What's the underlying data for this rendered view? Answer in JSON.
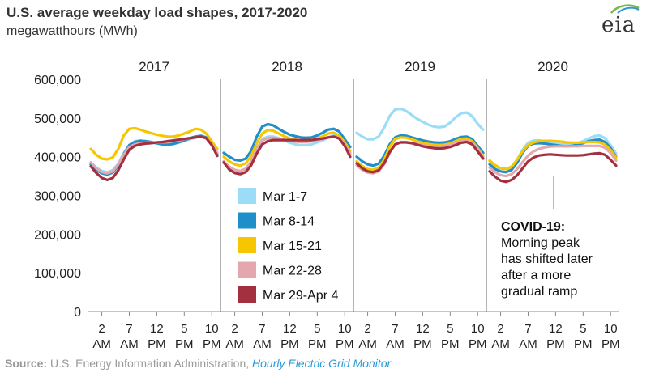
{
  "title": "U.S. average weekday load shapes, 2017-2020",
  "subtitle": "megawatthours (MWh)",
  "logo_text": "eia",
  "source": {
    "label": "Source:",
    "text": " U.S. Energy Information Administration, ",
    "link": "Hourly Electric Grid Monitor"
  },
  "annotation": {
    "heading": "COVID-19:",
    "lines": [
      "Morning peak",
      "has shifted later",
      "after a more",
      "gradual ramp"
    ]
  },
  "chart_data": {
    "type": "line",
    "ylim": [
      0,
      600000
    ],
    "yticks": [
      0,
      100000,
      200000,
      300000,
      400000,
      500000,
      600000
    ],
    "ytick_labels": [
      "0",
      "100,000",
      "200,000",
      "300,000",
      "400,000",
      "500,000",
      "600,000"
    ],
    "grid": false,
    "x_hours": [
      0,
      1,
      2,
      3,
      4,
      5,
      6,
      7,
      8,
      9,
      10,
      11,
      12,
      13,
      14,
      15,
      16,
      17,
      18,
      19,
      20,
      21,
      22,
      23
    ],
    "xtick_hours": [
      2,
      7,
      12,
      17,
      22
    ],
    "xtick_top": [
      "2",
      "7",
      "12",
      "5",
      "10"
    ],
    "xtick_bottom": [
      "AM",
      "AM",
      "PM",
      "PM",
      "PM"
    ],
    "legend": {
      "placement": "center-left",
      "entries": [
        "Mar 1-7",
        "Mar 8-14",
        "Mar 15-21",
        "Mar 22-28",
        "Mar 29-Apr 4"
      ]
    },
    "series_colors": [
      "#9bdcf6",
      "#1e8fc8",
      "#f6c600",
      "#e4a7ae",
      "#a3303e"
    ],
    "panels": [
      {
        "year": "2017",
        "series": [
          {
            "name": "Mar 1-7",
            "values": [
              385000,
              372000,
              363000,
              360000,
              365000,
              382000,
              410000,
              430000,
              440000,
              442000,
              440000,
              437000,
              434000,
              432000,
              432000,
              434000,
              437000,
              441000,
              445000,
              450000,
              453000,
              450000,
              435000,
              410000
            ]
          },
          {
            "name": "Mar 8-14",
            "values": [
              380000,
              366000,
              357000,
              354000,
              359000,
              377000,
              406000,
              430000,
              438000,
              441000,
              440000,
              438000,
              435000,
              432000,
              431000,
              433000,
              437000,
              442000,
              448000,
              452000,
              454000,
              450000,
              433000,
              408000
            ]
          },
          {
            "name": "Mar 15-21",
            "values": [
              420000,
              405000,
              395000,
              393000,
              398000,
              420000,
              455000,
              472000,
              474000,
              470000,
              465000,
              461000,
              457000,
              454000,
              452000,
              452000,
              455000,
              460000,
              465000,
              472000,
              470000,
              460000,
              440000,
              420000
            ]
          },
          {
            "name": "Mar 22-28",
            "values": [
              385000,
              370000,
              360000,
              357000,
              362000,
              380000,
              405000,
              425000,
              432000,
              435000,
              436000,
              436000,
              436000,
              437000,
              438000,
              440000,
              442000,
              445000,
              448000,
              450000,
              452000,
              448000,
              432000,
              410000
            ]
          },
          {
            "name": "Mar 29-Apr 4",
            "values": [
              375000,
              358000,
              345000,
              340000,
              345000,
              365000,
              393000,
              418000,
              428000,
              432000,
              434000,
              435000,
              437000,
              438000,
              440000,
              442000,
              444000,
              446000,
              448000,
              450000,
              452000,
              448000,
              430000,
              402000
            ]
          }
        ]
      },
      {
        "year": "2018",
        "series": [
          {
            "name": "Mar 1-7",
            "values": [
              385000,
              372000,
              365000,
              362000,
              368000,
              388000,
              420000,
              445000,
              452000,
              452000,
              448000,
              442000,
              436000,
              432000,
              430000,
              430000,
              432000,
              437000,
              442000,
              450000,
              455000,
              450000,
              430000,
              410000
            ]
          },
          {
            "name": "Mar 8-14",
            "values": [
              410000,
              400000,
              392000,
              390000,
              395000,
              415000,
              452000,
              478000,
              484000,
              481000,
              472000,
              464000,
              457000,
              453000,
              450000,
              449000,
              450000,
              455000,
              462000,
              470000,
              472000,
              465000,
              445000,
              425000
            ]
          },
          {
            "name": "Mar 15-21",
            "values": [
              400000,
              388000,
              380000,
              377000,
              383000,
              402000,
              435000,
              460000,
              469000,
              467000,
              460000,
              453000,
              447000,
              444000,
              442000,
              441000,
              443000,
              447000,
              453000,
              460000,
              462000,
              455000,
              437000,
              415000
            ]
          },
          {
            "name": "Mar 22-28",
            "values": [
              388000,
              374000,
              366000,
              363000,
              369000,
              388000,
              420000,
              442000,
              448000,
              449000,
              447000,
              444000,
              441000,
              439000,
              438000,
              438000,
              440000,
              443000,
              446000,
              450000,
              452000,
              448000,
              432000,
              408000
            ]
          },
          {
            "name": "Mar 29-Apr 4",
            "values": [
              385000,
              367000,
              358000,
              355000,
              360000,
              378000,
              408000,
              432000,
              440000,
              443000,
              443000,
              443000,
              443000,
              443000,
              443000,
              443000,
              443000,
              445000,
              447000,
              450000,
              452000,
              447000,
              428000,
              400000
            ]
          }
        ]
      },
      {
        "year": "2019",
        "series": [
          {
            "name": "Mar 1-7",
            "values": [
              462000,
              452000,
              445000,
              445000,
              452000,
              475000,
              505000,
              522000,
              524000,
              518000,
              508000,
              498000,
              490000,
              483000,
              478000,
              476000,
              478000,
              488000,
              502000,
              512000,
              514000,
              505000,
              485000,
              470000
            ]
          },
          {
            "name": "Mar 8-14",
            "values": [
              400000,
              388000,
              380000,
              377000,
              382000,
              402000,
              432000,
              450000,
              455000,
              454000,
              450000,
              446000,
              442000,
              439000,
              437000,
              436000,
              437000,
              440000,
              446000,
              451000,
              452000,
              446000,
              428000,
              410000
            ]
          },
          {
            "name": "Mar 15-21",
            "values": [
              388000,
              376000,
              368000,
              366000,
              372000,
              392000,
              425000,
              446000,
              450000,
              449000,
              445000,
              440000,
              436000,
              433000,
              431000,
              430000,
              431000,
              434000,
              440000,
              446000,
              447000,
              440000,
              422000,
              402000
            ]
          },
          {
            "name": "Mar 22-28",
            "values": [
              378000,
              366000,
              359000,
              357000,
              362000,
              380000,
              410000,
              432000,
              438000,
              438000,
              436000,
              433000,
              430000,
              428000,
              427000,
              427000,
              428000,
              431000,
              435000,
              440000,
              442000,
              437000,
              420000,
              398000
            ]
          },
          {
            "name": "Mar 29-Apr 4",
            "values": [
              383000,
              370000,
              362000,
              360000,
              365000,
              383000,
              412000,
              432000,
              437000,
              437000,
              435000,
              431000,
              427000,
              424000,
              422000,
              421000,
              422000,
              425000,
              430000,
              436000,
              438000,
              432000,
              414000,
              395000
            ]
          }
        ]
      },
      {
        "year": "2020",
        "series": [
          {
            "name": "Mar 1-7",
            "values": [
              388000,
              376000,
              370000,
              368000,
              374000,
              392000,
              418000,
              436000,
              442000,
              442000,
              440000,
              437000,
              434000,
              432000,
              431000,
              432000,
              435000,
              440000,
              447000,
              453000,
              455000,
              448000,
              430000,
              408000
            ]
          },
          {
            "name": "Mar 8-14",
            "values": [
              380000,
              368000,
              362000,
              360000,
              366000,
              384000,
              410000,
              428000,
              434000,
              435000,
              434000,
              432000,
              430000,
              428000,
              427000,
              428000,
              431000,
              435000,
              440000,
              443000,
              444000,
              438000,
              422000,
              400000
            ]
          },
          {
            "name": "Mar 15-21",
            "values": [
              390000,
              378000,
              370000,
              368000,
              374000,
              392000,
              414000,
              430000,
              437000,
              440000,
              441000,
              441000,
              440000,
              439000,
              437000,
              436000,
              436000,
              437000,
              438000,
              438000,
              437000,
              431000,
              417000,
              398000
            ]
          },
          {
            "name": "Mar 22-28",
            "values": [
              372000,
              360000,
              352000,
              350000,
              355000,
              368000,
              386000,
              403000,
              414000,
              420000,
              424000,
              426000,
              427000,
              427000,
              427000,
              427000,
              427000,
              428000,
              428000,
              428000,
              428000,
              423000,
              410000,
              390000
            ]
          },
          {
            "name": "Mar 29-Apr 4",
            "values": [
              362000,
              348000,
              338000,
              335000,
              340000,
              352000,
              370000,
              388000,
              398000,
              403000,
              405000,
              406000,
              405000,
              404000,
              403000,
              403000,
              403000,
              404000,
              406000,
              408000,
              409000,
              405000,
              392000,
              377000
            ]
          }
        ]
      }
    ]
  }
}
